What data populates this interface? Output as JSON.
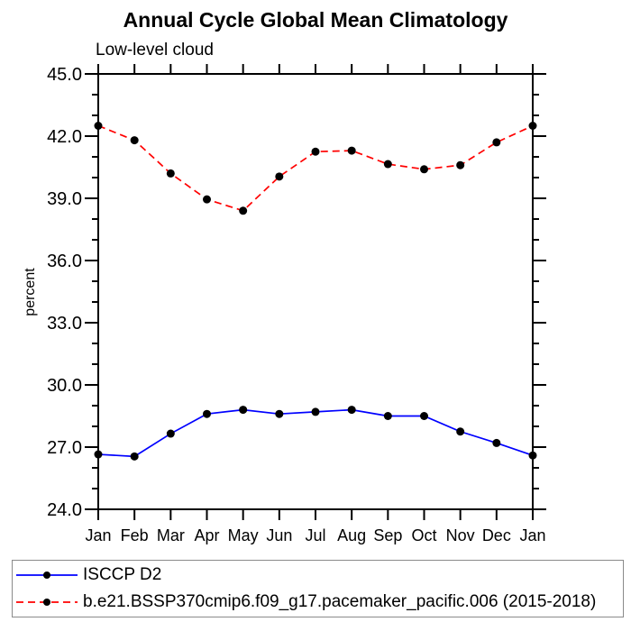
{
  "header": {
    "title": "Annual Cycle Global Mean Climatology",
    "subtitle": "Low-level cloud"
  },
  "chart_data": {
    "type": "line",
    "title": "Annual Cycle Global Mean Climatology",
    "subtitle": "Low-level cloud",
    "xlabel": "",
    "ylabel": "percent",
    "x_labels": [
      "Jan",
      "Feb",
      "Mar",
      "Apr",
      "May",
      "Jun",
      "Jul",
      "Aug",
      "Sep",
      "Oct",
      "Nov",
      "Dec",
      "Jan"
    ],
    "ylim": [
      24.0,
      45.0
    ],
    "ytick_major_interval": 3.0,
    "ytick_minor_interval": 1.0,
    "ytick_labels": [
      "45.0",
      "42.0",
      "39.0",
      "36.0",
      "33.0",
      "30.0",
      "27.0",
      "24.0"
    ],
    "grid": false,
    "legend_position": "bottom-box",
    "marker": "filled-circle",
    "marker_color": "#000000",
    "axis_color": "#000000",
    "series": [
      {
        "name": "ISCCP D2",
        "color": "#0000ff",
        "line_style": "solid",
        "values": [
          26.65,
          26.55,
          27.65,
          28.6,
          28.8,
          28.6,
          28.7,
          28.8,
          28.5,
          28.5,
          27.75,
          27.2,
          26.6
        ]
      },
      {
        "name": "b.e21.BSSP370cmip6.f09_g17.pacemaker_pacific.006 (2015-2018)",
        "color": "#ff0000",
        "line_style": "dashed",
        "values": [
          42.5,
          41.8,
          40.2,
          38.95,
          38.4,
          40.05,
          41.25,
          41.3,
          40.65,
          40.4,
          40.6,
          41.7,
          42.5
        ]
      }
    ]
  }
}
